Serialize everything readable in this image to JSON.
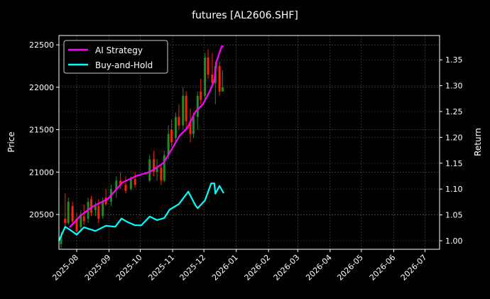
{
  "chart_data": {
    "type": "line",
    "title": "futures [AL2606.SHF]",
    "ylabel": "Price",
    "ylabel_right": "Return",
    "xlim": [
      "2025-07-15",
      "2026-07-15"
    ],
    "ylim": [
      20090,
      22610
    ],
    "ylim_right": [
      0.9835,
      1.397
    ],
    "grid": true,
    "legend_placement": "top-left",
    "x_ticks": [
      "2025-08",
      "2025-09",
      "2025-10",
      "2025-11",
      "2025-12",
      "2026-01",
      "2026-02",
      "2026-03",
      "2026-04",
      "2026-05",
      "2026-06",
      "2026-07"
    ],
    "y_ticks": [
      20500,
      21000,
      21500,
      22000,
      22500
    ],
    "y_ticks_right": [
      "1.00",
      "1.05",
      "1.10",
      "1.15",
      "1.20",
      "1.25",
      "1.30",
      "1.35"
    ],
    "colors": {
      "up": "#228b22",
      "down": "#ff2200",
      "ai": "#ff00ff",
      "bh": "#00ffff",
      "grid": "#555555"
    },
    "candles": [
      [
        "2025-07-17",
        20150,
        20300,
        20100,
        20250
      ],
      [
        "2025-07-21",
        20450,
        20750,
        20350,
        20400
      ],
      [
        "2025-07-24",
        20400,
        20700,
        20380,
        20650
      ],
      [
        "2025-07-28",
        20600,
        20650,
        20380,
        20420
      ],
      [
        "2025-08-01",
        20450,
        20520,
        20250,
        20300
      ],
      [
        "2025-08-05",
        20350,
        20550,
        20300,
        20500
      ],
      [
        "2025-08-08",
        20480,
        20620,
        20380,
        20420
      ],
      [
        "2025-08-12",
        20450,
        20700,
        20400,
        20650
      ],
      [
        "2025-08-15",
        20680,
        20720,
        20480,
        20520
      ],
      [
        "2025-08-19",
        20550,
        20650,
        20480,
        20600
      ],
      [
        "2025-08-22",
        20600,
        20680,
        20400,
        20450
      ],
      [
        "2025-08-26",
        20480,
        20700,
        20450,
        20650
      ],
      [
        "2025-08-29",
        20700,
        20800,
        20600,
        20620
      ],
      [
        "2025-09-03",
        20650,
        20850,
        20600,
        20800
      ],
      [
        "2025-09-08",
        20800,
        20950,
        20700,
        20900
      ],
      [
        "2025-09-12",
        20900,
        21000,
        20800,
        20850
      ],
      [
        "2025-09-17",
        20850,
        20950,
        20750,
        20780
      ],
      [
        "2025-09-22",
        20800,
        20950,
        20780,
        20920
      ],
      [
        "2025-09-26",
        20920,
        21000,
        20820,
        20850
      ],
      [
        "2025-10-10",
        20900,
        21200,
        20880,
        21150
      ],
      [
        "2025-10-14",
        21150,
        21250,
        20950,
        21000
      ],
      [
        "2025-10-17",
        21000,
        21150,
        20900,
        21050
      ],
      [
        "2025-10-21",
        21050,
        21100,
        20850,
        20900
      ],
      [
        "2025-10-24",
        20900,
        21250,
        20880,
        21200
      ],
      [
        "2025-10-28",
        21200,
        21550,
        21150,
        21450
      ],
      [
        "2025-10-31",
        21500,
        21620,
        21300,
        21350
      ],
      [
        "2025-11-04",
        21400,
        21700,
        21350,
        21650
      ],
      [
        "2025-11-07",
        21650,
        21800,
        21500,
        21550
      ],
      [
        "2025-11-11",
        21550,
        22000,
        21500,
        21900
      ],
      [
        "2025-11-14",
        21900,
        21950,
        21500,
        21600
      ],
      [
        "2025-11-18",
        21600,
        21750,
        21350,
        21450
      ],
      [
        "2025-11-21",
        21450,
        21700,
        21400,
        21650
      ],
      [
        "2025-11-25",
        21650,
        21950,
        21500,
        21900
      ],
      [
        "2025-11-28",
        21950,
        22100,
        21800,
        21850
      ],
      [
        "2025-12-02",
        21900,
        22400,
        21850,
        22350
      ],
      [
        "2025-12-05",
        22350,
        22450,
        22100,
        22150
      ],
      [
        "2025-12-09",
        22150,
        22400,
        22000,
        22050
      ],
      [
        "2025-12-12",
        22050,
        22300,
        21800,
        22250
      ],
      [
        "2025-12-16",
        22250,
        22300,
        21900,
        21950
      ],
      [
        "2025-12-19",
        21950,
        22200,
        21950,
        22000
      ]
    ],
    "series": [
      {
        "name": "AI Strategy",
        "axis": "right",
        "x": [
          "2025-07-25",
          "2025-07-27",
          "2025-08-05",
          "2025-08-17",
          "2025-08-31",
          "2025-09-14",
          "2025-09-28",
          "2025-10-10",
          "2025-10-23",
          "2025-10-30",
          "2025-11-08",
          "2025-11-15",
          "2025-11-23",
          "2025-11-30",
          "2025-12-06",
          "2025-12-11",
          "2025-12-13",
          "2025-12-18",
          "2025-12-20"
        ],
        "values": [
          1.026,
          1.03,
          1.049,
          1.067,
          1.081,
          1.113,
          1.126,
          1.133,
          1.15,
          1.173,
          1.204,
          1.218,
          1.25,
          1.264,
          1.287,
          1.31,
          1.346,
          1.376,
          1.376
        ]
      },
      {
        "name": "Buy-and-Hold",
        "axis": "right",
        "x": [
          "2025-07-15",
          "2025-07-21",
          "2025-07-25",
          "2025-08-01",
          "2025-08-08",
          "2025-08-19",
          "2025-08-29",
          "2025-09-07",
          "2025-09-13",
          "2025-09-19",
          "2025-09-26",
          "2025-10-02",
          "2025-10-10",
          "2025-10-17",
          "2025-10-24",
          "2025-10-29",
          "2025-11-07",
          "2025-11-16",
          "2025-11-23",
          "2025-11-25",
          "2025-12-02",
          "2025-12-08",
          "2025-12-11",
          "2025-12-12",
          "2025-12-16",
          "2025-12-20"
        ],
        "values": [
          1.0,
          1.027,
          1.022,
          1.012,
          1.026,
          1.019,
          1.029,
          1.027,
          1.043,
          1.036,
          1.03,
          1.03,
          1.047,
          1.04,
          1.044,
          1.06,
          1.071,
          1.095,
          1.068,
          1.063,
          1.078,
          1.111,
          1.111,
          1.091,
          1.106,
          1.092
        ]
      }
    ]
  }
}
